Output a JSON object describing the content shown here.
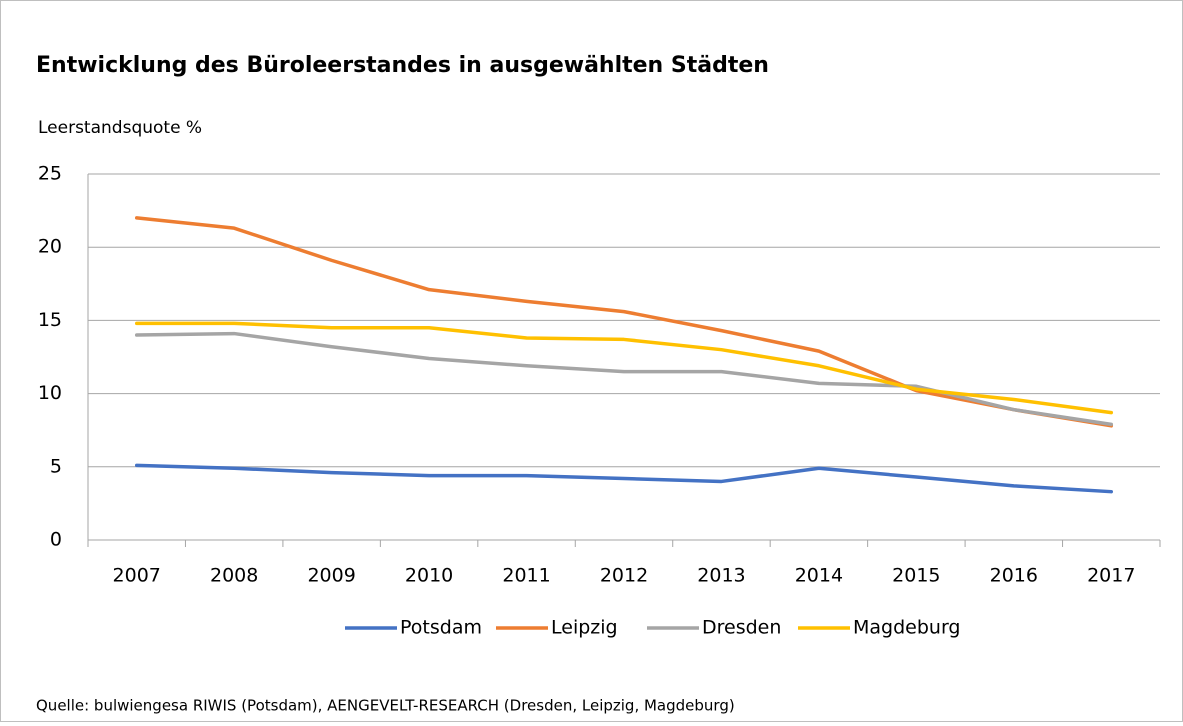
{
  "chart_data": {
    "type": "line",
    "title": "Entwicklung des Büroleerstandes in ausgewählten Städten",
    "y_label": "Leerstandsquote %",
    "source": "Quelle: bulwiengesa RIWIS (Potsdam), AENGEVELT-RESEARCH (Dresden, Leipzig, Magdeburg)",
    "categories": [
      "2007",
      "2008",
      "2009",
      "2010",
      "2011",
      "2012",
      "2013",
      "2014",
      "2015",
      "2016",
      "2017"
    ],
    "series": [
      {
        "name": "Potsdam",
        "color": "#4472c4",
        "values": [
          5.1,
          4.9,
          4.6,
          4.4,
          4.4,
          4.2,
          4.0,
          4.9,
          4.3,
          3.7,
          3.3
        ]
      },
      {
        "name": "Leipzig",
        "color": "#ed7d31",
        "values": [
          22.0,
          21.3,
          19.1,
          17.1,
          16.3,
          15.6,
          14.3,
          12.9,
          10.2,
          8.9,
          7.8
        ]
      },
      {
        "name": "Dresden",
        "color": "#a5a5a5",
        "values": [
          14.0,
          14.1,
          13.2,
          12.4,
          11.9,
          11.5,
          11.5,
          10.7,
          10.5,
          8.9,
          7.9
        ]
      },
      {
        "name": "Magdeburg",
        "color": "#ffc000",
        "values": [
          14.8,
          14.8,
          14.5,
          14.5,
          13.8,
          13.7,
          13.0,
          11.9,
          10.3,
          9.6,
          8.7
        ]
      }
    ],
    "ylim": [
      0,
      25
    ],
    "yticks": [
      0,
      5,
      10,
      15,
      20,
      25
    ],
    "grid": true,
    "legend": "bottom"
  }
}
